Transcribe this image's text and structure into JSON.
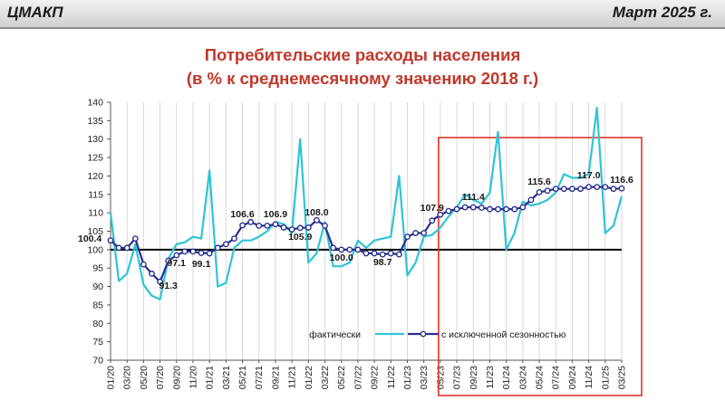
{
  "header": {
    "org": "ЦМАКП",
    "date": "Март 2025 г."
  },
  "colors": {
    "actual": "#2ec4d6",
    "sa": "#2a2f8c",
    "highlight": "#e0352b",
    "title": "#c0392b",
    "baseline": "#000000"
  },
  "chart_data": {
    "type": "line",
    "title": "Потребительские расходы населения",
    "subtitle": "(в % к среднемесячному значению 2018 г.)",
    "ylim": [
      70,
      140
    ],
    "yticks": [
      70,
      75,
      80,
      85,
      90,
      95,
      100,
      105,
      110,
      115,
      120,
      125,
      130,
      135,
      140
    ],
    "baseline": 100,
    "grid": "vertical",
    "x": [
      "01/20",
      "02/20",
      "03/20",
      "04/20",
      "05/20",
      "06/20",
      "07/20",
      "08/20",
      "09/20",
      "10/20",
      "11/20",
      "12/20",
      "01/21",
      "02/21",
      "03/21",
      "04/21",
      "05/21",
      "06/21",
      "07/21",
      "08/21",
      "09/21",
      "10/21",
      "11/21",
      "12/21",
      "01/22",
      "02/22",
      "03/22",
      "04/22",
      "05/22",
      "06/22",
      "07/22",
      "08/22",
      "09/22",
      "10/22",
      "11/22",
      "12/22",
      "01/23",
      "02/23",
      "03/23",
      "04/23",
      "05/23",
      "06/23",
      "07/23",
      "08/23",
      "09/23",
      "10/23",
      "11/23",
      "12/23",
      "01/24",
      "02/24",
      "03/24",
      "04/24",
      "05/24",
      "06/24",
      "07/24",
      "08/24",
      "09/24",
      "10/24",
      "11/24",
      "12/24",
      "01/25",
      "02/25",
      "03/25"
    ],
    "xtick_labels": [
      "01/20",
      "03/20",
      "05/20",
      "07/20",
      "09/20",
      "11/20",
      "01/21",
      "03/21",
      "05/21",
      "07/21",
      "09/21",
      "11/21",
      "01/22",
      "03/22",
      "05/22",
      "07/22",
      "09/22",
      "11/22",
      "01/23",
      "03/23",
      "05/23",
      "07/23",
      "09/23",
      "11/23",
      "01/24",
      "03/24",
      "05/24",
      "07/24",
      "09/24",
      "11/24",
      "01/25",
      "03/25"
    ],
    "series": [
      {
        "name": "фактически",
        "values": [
          110,
          91.5,
          93.5,
          101.5,
          90.5,
          87.5,
          86.5,
          97.5,
          101.5,
          102,
          103.5,
          103,
          121.5,
          90,
          91,
          100.5,
          102.5,
          102.5,
          103.5,
          105,
          107.5,
          107,
          104.5,
          130,
          96.5,
          99,
          107.5,
          95.5,
          95.5,
          96.5,
          102.5,
          100.5,
          102.5,
          103,
          103.5,
          120,
          93,
          96.5,
          103.5,
          104,
          106,
          109,
          111.5,
          115,
          113.5,
          112.5,
          115.5,
          132,
          100,
          104.5,
          113,
          112,
          112.5,
          113.5,
          115.5,
          120.5,
          119.5,
          119.5,
          120.5,
          138.5,
          104.5,
          106.5,
          114.5
        ]
      },
      {
        "name": "с исключенной сезонностью",
        "values": [
          102.5,
          100.5,
          100.5,
          103,
          96,
          93.5,
          91.3,
          97,
          98.5,
          99.5,
          99.5,
          99.1,
          99,
          100.5,
          101.5,
          103,
          106.6,
          107.5,
          106.5,
          106.5,
          106.9,
          106,
          105.5,
          105.9,
          106,
          108,
          106.5,
          100.5,
          100,
          100,
          100,
          99,
          99,
          98.7,
          99,
          98.7,
          103.5,
          104.5,
          104.5,
          107.9,
          109.5,
          110.5,
          111,
          111.5,
          111.5,
          111.4,
          111,
          111,
          111,
          111,
          111.5,
          113.5,
          115.6,
          116,
          116.5,
          116.5,
          116.5,
          116.5,
          117,
          117,
          117,
          116.5,
          116.6
        ]
      }
    ],
    "data_labels": [
      {
        "text": "100.4"
      },
      {
        "text": "91.3"
      },
      {
        "text": "97.1"
      },
      {
        "text": "99.1"
      },
      {
        "text": "106.6"
      },
      {
        "text": "106.9"
      },
      {
        "text": "105.9"
      },
      {
        "text": "108.0"
      },
      {
        "text": "100.0"
      },
      {
        "text": "98.7"
      },
      {
        "text": "107.9"
      },
      {
        "text": "111.4"
      },
      {
        "text": "115.6"
      },
      {
        "text": "117.0"
      },
      {
        "text": "116.6"
      }
    ],
    "legend_position": "bottom-right",
    "highlight_range": [
      "05/23",
      "03/25"
    ]
  }
}
